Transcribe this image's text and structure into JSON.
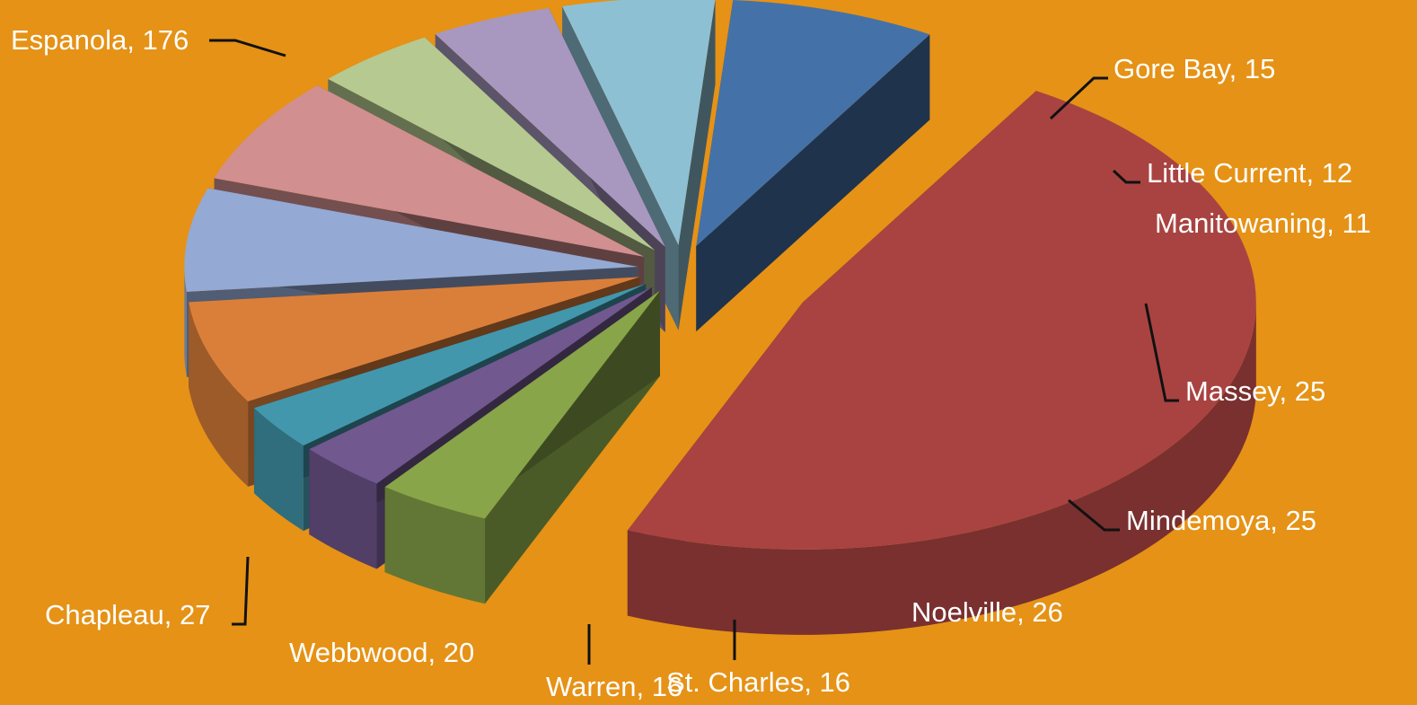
{
  "chart_data": {
    "type": "pie",
    "title": "",
    "legend": "none",
    "style": "3d-exploded",
    "slices": [
      {
        "label": "Espanola",
        "value": 176,
        "display": "Espanola, 176",
        "color": "#a84341"
      },
      {
        "label": "Gore Bay",
        "value": 15,
        "display": "Gore Bay, 15",
        "color": "#88a549"
      },
      {
        "label": "Little Current",
        "value": 12,
        "display": "Little Current, 12",
        "color": "#71588f"
      },
      {
        "label": "Manitowaning",
        "value": 11,
        "display": "Manitowaning, 11",
        "color": "#4297ad"
      },
      {
        "label": "Massey",
        "value": 25,
        "display": "Massey, 25",
        "color": "#da7f3a"
      },
      {
        "label": "Mindemoya",
        "value": 25,
        "display": "Mindemoya, 25",
        "color": "#94a9d3"
      },
      {
        "label": "Noelville",
        "value": 26,
        "display": "Noelville, 26",
        "color": "#d28f8f"
      },
      {
        "label": "St. Charles",
        "value": 16,
        "display": "St. Charles, 16",
        "color": "#b6c991"
      },
      {
        "label": "Warren",
        "value": 16,
        "display": "Warren, 16",
        "color": "#a898bf"
      },
      {
        "label": "Webbwood",
        "value": 20,
        "display": "Webbwood, 20",
        "color": "#8ec0d4"
      },
      {
        "label": "Chapleau",
        "value": 27,
        "display": "Chapleau, 27",
        "color": "#4472a8"
      }
    ]
  },
  "colors": {
    "background": "#e59216",
    "label_text": "#ffffff",
    "leader_lines": "#111111"
  }
}
